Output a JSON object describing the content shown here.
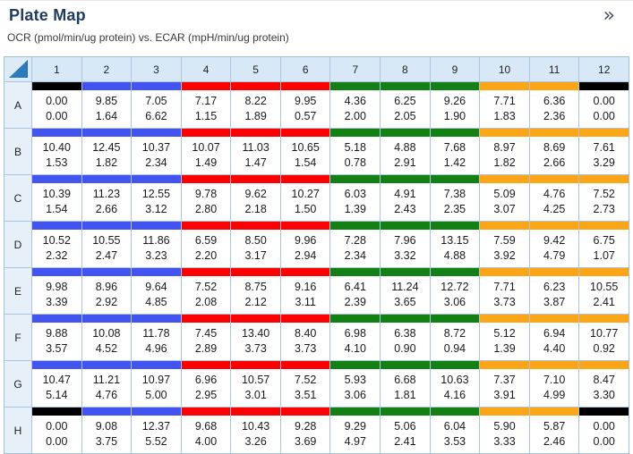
{
  "panel": {
    "title": "Plate Map",
    "subtitle": "OCR (pmol/min/ug protein) vs. ECAR (mpH/min/ug protein)",
    "expand_icon_glyph": "»"
  },
  "colors": {
    "group_black": "#000000",
    "group_blue": "#4353f0",
    "group_red": "#fe0000",
    "group_green": "#128012",
    "group_orange": "#fba517"
  },
  "plate": {
    "column_headers": [
      "1",
      "2",
      "3",
      "4",
      "5",
      "6",
      "7",
      "8",
      "9",
      "10",
      "11",
      "12"
    ],
    "row_labels": [
      "A",
      "B",
      "C",
      "D",
      "E",
      "F",
      "G",
      "H"
    ],
    "wells": [
      [
        {
          "group": "black",
          "ocr": "0.00",
          "ecar": "0.00"
        },
        {
          "group": "blue",
          "ocr": "9.85",
          "ecar": "1.64"
        },
        {
          "group": "blue",
          "ocr": "7.05",
          "ecar": "6.62"
        },
        {
          "group": "red",
          "ocr": "7.17",
          "ecar": "1.15"
        },
        {
          "group": "red",
          "ocr": "8.22",
          "ecar": "1.89"
        },
        {
          "group": "red",
          "ocr": "9.95",
          "ecar": "0.57"
        },
        {
          "group": "green",
          "ocr": "4.36",
          "ecar": "2.00"
        },
        {
          "group": "green",
          "ocr": "6.25",
          "ecar": "2.05"
        },
        {
          "group": "green",
          "ocr": "9.26",
          "ecar": "1.90"
        },
        {
          "group": "orange",
          "ocr": "7.71",
          "ecar": "1.83"
        },
        {
          "group": "orange",
          "ocr": "6.36",
          "ecar": "2.36"
        },
        {
          "group": "black",
          "ocr": "0.00",
          "ecar": "0.00"
        }
      ],
      [
        {
          "group": "blue",
          "ocr": "10.40",
          "ecar": "1.53"
        },
        {
          "group": "blue",
          "ocr": "12.45",
          "ecar": "1.82"
        },
        {
          "group": "blue",
          "ocr": "10.37",
          "ecar": "2.34"
        },
        {
          "group": "red",
          "ocr": "10.07",
          "ecar": "1.49"
        },
        {
          "group": "red",
          "ocr": "11.03",
          "ecar": "1.47"
        },
        {
          "group": "red",
          "ocr": "10.65",
          "ecar": "1.54"
        },
        {
          "group": "green",
          "ocr": "5.18",
          "ecar": "0.78"
        },
        {
          "group": "green",
          "ocr": "4.88",
          "ecar": "2.91"
        },
        {
          "group": "green",
          "ocr": "7.68",
          "ecar": "1.42"
        },
        {
          "group": "orange",
          "ocr": "8.97",
          "ecar": "1.82"
        },
        {
          "group": "orange",
          "ocr": "8.69",
          "ecar": "2.66"
        },
        {
          "group": "orange",
          "ocr": "7.61",
          "ecar": "3.29"
        }
      ],
      [
        {
          "group": "blue",
          "ocr": "10.39",
          "ecar": "1.54"
        },
        {
          "group": "blue",
          "ocr": "11.23",
          "ecar": "2.66"
        },
        {
          "group": "blue",
          "ocr": "12.55",
          "ecar": "3.12"
        },
        {
          "group": "red",
          "ocr": "9.78",
          "ecar": "2.80"
        },
        {
          "group": "red",
          "ocr": "9.62",
          "ecar": "2.18"
        },
        {
          "group": "red",
          "ocr": "10.27",
          "ecar": "1.50"
        },
        {
          "group": "green",
          "ocr": "6.03",
          "ecar": "1.39"
        },
        {
          "group": "green",
          "ocr": "4.91",
          "ecar": "2.43"
        },
        {
          "group": "green",
          "ocr": "7.38",
          "ecar": "2.35"
        },
        {
          "group": "orange",
          "ocr": "5.09",
          "ecar": "3.07"
        },
        {
          "group": "orange",
          "ocr": "4.76",
          "ecar": "4.25"
        },
        {
          "group": "orange",
          "ocr": "7.52",
          "ecar": "2.73"
        }
      ],
      [
        {
          "group": "blue",
          "ocr": "10.52",
          "ecar": "2.32"
        },
        {
          "group": "blue",
          "ocr": "10.55",
          "ecar": "2.47"
        },
        {
          "group": "blue",
          "ocr": "11.86",
          "ecar": "3.23"
        },
        {
          "group": "red",
          "ocr": "6.59",
          "ecar": "2.20"
        },
        {
          "group": "red",
          "ocr": "8.50",
          "ecar": "3.17"
        },
        {
          "group": "red",
          "ocr": "9.96",
          "ecar": "2.94"
        },
        {
          "group": "green",
          "ocr": "7.28",
          "ecar": "2.34"
        },
        {
          "group": "green",
          "ocr": "7.96",
          "ecar": "3.32"
        },
        {
          "group": "green",
          "ocr": "13.15",
          "ecar": "4.88"
        },
        {
          "group": "orange",
          "ocr": "7.59",
          "ecar": "3.92"
        },
        {
          "group": "orange",
          "ocr": "9.42",
          "ecar": "4.79"
        },
        {
          "group": "orange",
          "ocr": "6.75",
          "ecar": "1.07"
        }
      ],
      [
        {
          "group": "blue",
          "ocr": "9.98",
          "ecar": "3.39"
        },
        {
          "group": "blue",
          "ocr": "8.96",
          "ecar": "2.92"
        },
        {
          "group": "blue",
          "ocr": "9.64",
          "ecar": "4.85"
        },
        {
          "group": "red",
          "ocr": "7.52",
          "ecar": "2.08"
        },
        {
          "group": "red",
          "ocr": "8.75",
          "ecar": "2.12"
        },
        {
          "group": "red",
          "ocr": "9.16",
          "ecar": "3.11"
        },
        {
          "group": "green",
          "ocr": "6.41",
          "ecar": "2.39"
        },
        {
          "group": "green",
          "ocr": "11.24",
          "ecar": "3.65"
        },
        {
          "group": "green",
          "ocr": "12.72",
          "ecar": "3.06"
        },
        {
          "group": "orange",
          "ocr": "7.71",
          "ecar": "3.73"
        },
        {
          "group": "orange",
          "ocr": "6.23",
          "ecar": "3.87"
        },
        {
          "group": "orange",
          "ocr": "10.55",
          "ecar": "2.41"
        }
      ],
      [
        {
          "group": "blue",
          "ocr": "9.88",
          "ecar": "3.57"
        },
        {
          "group": "blue",
          "ocr": "10.08",
          "ecar": "4.52"
        },
        {
          "group": "blue",
          "ocr": "11.78",
          "ecar": "4.96"
        },
        {
          "group": "red",
          "ocr": "7.45",
          "ecar": "2.89"
        },
        {
          "group": "red",
          "ocr": "13.40",
          "ecar": "3.73"
        },
        {
          "group": "red",
          "ocr": "8.40",
          "ecar": "3.73"
        },
        {
          "group": "green",
          "ocr": "6.98",
          "ecar": "4.10"
        },
        {
          "group": "green",
          "ocr": "6.38",
          "ecar": "0.90"
        },
        {
          "group": "green",
          "ocr": "8.72",
          "ecar": "0.94"
        },
        {
          "group": "orange",
          "ocr": "5.12",
          "ecar": "1.39"
        },
        {
          "group": "orange",
          "ocr": "6.94",
          "ecar": "4.40"
        },
        {
          "group": "orange",
          "ocr": "10.77",
          "ecar": "0.92"
        }
      ],
      [
        {
          "group": "blue",
          "ocr": "10.47",
          "ecar": "5.14"
        },
        {
          "group": "blue",
          "ocr": "11.21",
          "ecar": "4.76"
        },
        {
          "group": "blue",
          "ocr": "10.97",
          "ecar": "5.00"
        },
        {
          "group": "red",
          "ocr": "6.96",
          "ecar": "2.95"
        },
        {
          "group": "red",
          "ocr": "10.57",
          "ecar": "3.01"
        },
        {
          "group": "red",
          "ocr": "7.52",
          "ecar": "3.51"
        },
        {
          "group": "green",
          "ocr": "5.93",
          "ecar": "3.06"
        },
        {
          "group": "green",
          "ocr": "6.68",
          "ecar": "1.81"
        },
        {
          "group": "green",
          "ocr": "10.63",
          "ecar": "4.16"
        },
        {
          "group": "orange",
          "ocr": "7.37",
          "ecar": "3.91"
        },
        {
          "group": "orange",
          "ocr": "7.10",
          "ecar": "4.99"
        },
        {
          "group": "orange",
          "ocr": "8.47",
          "ecar": "3.30"
        }
      ],
      [
        {
          "group": "black",
          "ocr": "0.00",
          "ecar": "0.00"
        },
        {
          "group": "blue",
          "ocr": "9.08",
          "ecar": "3.75"
        },
        {
          "group": "blue",
          "ocr": "12.37",
          "ecar": "5.52"
        },
        {
          "group": "red",
          "ocr": "9.68",
          "ecar": "4.00"
        },
        {
          "group": "red",
          "ocr": "10.43",
          "ecar": "3.26"
        },
        {
          "group": "red",
          "ocr": "9.28",
          "ecar": "3.69"
        },
        {
          "group": "green",
          "ocr": "9.29",
          "ecar": "4.97"
        },
        {
          "group": "green",
          "ocr": "5.06",
          "ecar": "2.41"
        },
        {
          "group": "green",
          "ocr": "6.04",
          "ecar": "3.53"
        },
        {
          "group": "orange",
          "ocr": "5.90",
          "ecar": "3.33"
        },
        {
          "group": "orange",
          "ocr": "5.87",
          "ecar": "2.46"
        },
        {
          "group": "black",
          "ocr": "0.00",
          "ecar": "0.00"
        }
      ]
    ]
  }
}
